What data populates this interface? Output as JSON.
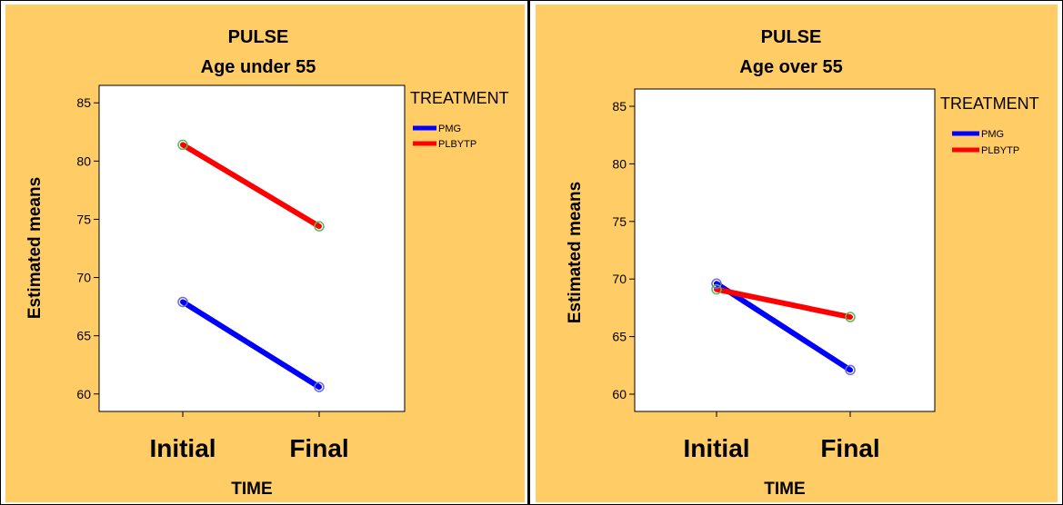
{
  "colors": {
    "background": "#FFCC66",
    "plot_area": "#FFFFFF",
    "PMG": "#0000FF",
    "PLBYTP": "#FF0000",
    "marker": "#5CB85C"
  },
  "chart_data": [
    {
      "type": "line",
      "title": "PULSE",
      "subtitle": "Age under 55",
      "xlabel": "TIME",
      "ylabel": "Estimated means",
      "categories": [
        "Initial",
        "Final"
      ],
      "ylim": [
        58.5,
        86.5
      ],
      "yticks": [
        "60",
        "65",
        "70",
        "75",
        "80",
        "85"
      ],
      "legend_title": "TREATMENT",
      "legend_position": "right",
      "grid": false,
      "series": [
        {
          "name": "PMG",
          "color": "#0000FF",
          "values": [
            67.9,
            60.6
          ]
        },
        {
          "name": "PLBYTP",
          "color": "#FF0000",
          "values": [
            81.4,
            74.4
          ]
        }
      ]
    },
    {
      "type": "line",
      "title": "PULSE",
      "subtitle": "Age over 55",
      "xlabel": "TIME",
      "ylabel": "Estimated means",
      "categories": [
        "Initial",
        "Final"
      ],
      "ylim": [
        58.5,
        86.5
      ],
      "yticks": [
        "60",
        "65",
        "70",
        "75",
        "80",
        "85"
      ],
      "legend_title": "TREATMENT",
      "legend_position": "right",
      "grid": false,
      "series": [
        {
          "name": "PMG",
          "color": "#0000FF",
          "values": [
            69.6,
            62.1
          ]
        },
        {
          "name": "PLBYTP",
          "color": "#FF0000",
          "values": [
            69.1,
            66.7
          ]
        }
      ]
    }
  ]
}
